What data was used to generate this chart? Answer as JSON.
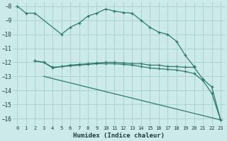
{
  "xlabel": "Humidex (Indice chaleur)",
  "bg_color": "#cceae7",
  "grid_color": "#aad4d0",
  "line_color": "#2d7a6e",
  "xlim": [
    -0.5,
    23.5
  ],
  "ylim": [
    -16.5,
    -7.7
  ],
  "yticks": [
    -8,
    -9,
    -10,
    -11,
    -12,
    -13,
    -14,
    -15,
    -16
  ],
  "xticks": [
    0,
    1,
    2,
    3,
    4,
    5,
    6,
    7,
    8,
    9,
    10,
    11,
    12,
    13,
    14,
    15,
    16,
    17,
    18,
    19,
    20,
    21,
    22,
    23
  ],
  "curve1_x": [
    0,
    1,
    2,
    5,
    6,
    7,
    8,
    9,
    10,
    11,
    12,
    13,
    14,
    15,
    16,
    17,
    18,
    19,
    20
  ],
  "curve1_y": [
    -8.0,
    -8.5,
    -8.5,
    -10.0,
    -9.5,
    -9.2,
    -8.7,
    -8.5,
    -8.2,
    -8.35,
    -8.45,
    -8.5,
    -9.0,
    -9.5,
    -9.85,
    -10.0,
    -10.5,
    -11.5,
    -12.3
  ],
  "curve2_x": [
    2,
    3,
    4,
    5,
    6,
    7,
    8,
    9,
    10,
    11,
    12,
    13,
    14,
    15,
    16,
    17,
    18,
    19,
    20,
    21,
    22,
    23
  ],
  "curve2_y": [
    -11.9,
    -12.0,
    -12.4,
    -12.3,
    -12.2,
    -12.15,
    -12.1,
    -12.05,
    -12.0,
    -12.0,
    -12.05,
    -12.1,
    -12.1,
    -12.2,
    -12.2,
    -12.3,
    -12.3,
    -12.35,
    -12.35,
    -13.2,
    -13.75,
    -16.1
  ],
  "curve3_x": [
    2,
    3,
    4,
    5,
    6,
    7,
    8,
    9,
    10,
    11,
    12,
    13,
    14,
    15,
    16,
    17,
    18,
    19,
    20,
    21,
    22,
    23
  ],
  "curve3_y": [
    -11.9,
    -12.0,
    -12.35,
    -12.3,
    -12.25,
    -12.2,
    -12.15,
    -12.1,
    -12.1,
    -12.1,
    -12.15,
    -12.2,
    -12.3,
    -12.4,
    -12.45,
    -12.5,
    -12.55,
    -12.65,
    -12.8,
    -13.3,
    -14.2,
    -16.1
  ],
  "curve4_x": [
    3,
    23
  ],
  "curve4_y": [
    -13.0,
    -16.1
  ]
}
